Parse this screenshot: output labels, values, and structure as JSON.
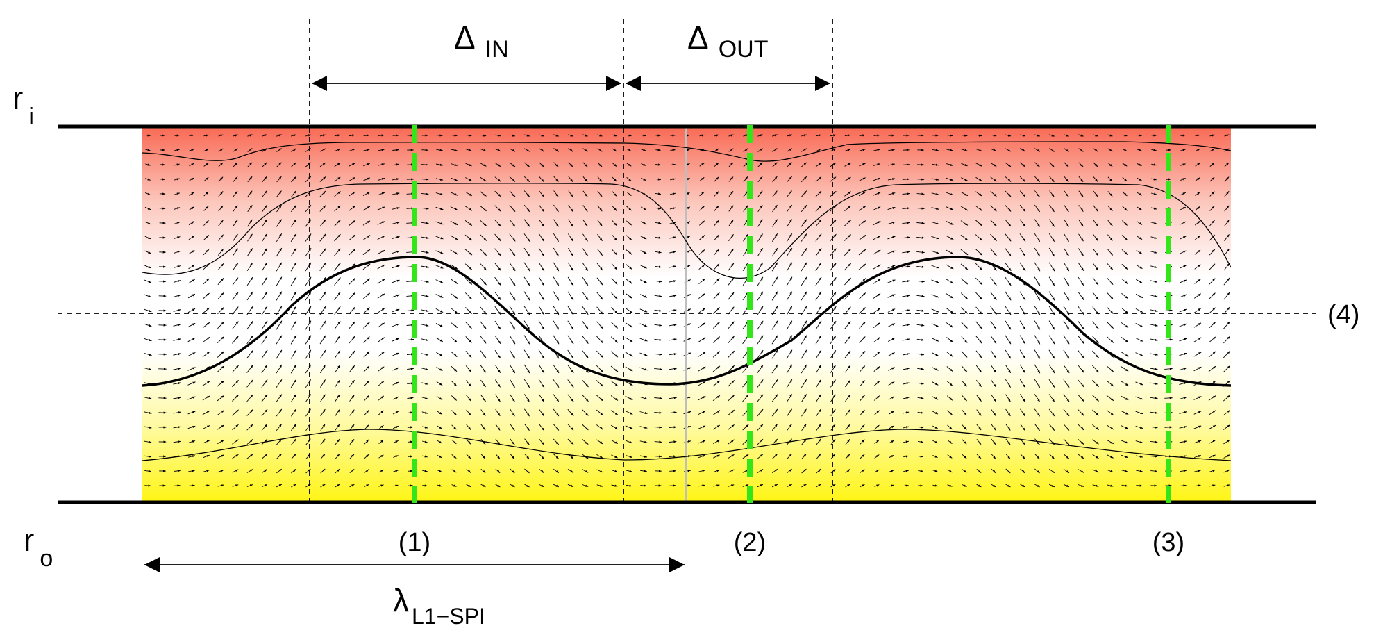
{
  "labels": {
    "inner_radius": {
      "main": "r",
      "sub": "i"
    },
    "outer_radius": {
      "main": "r",
      "sub": "o"
    },
    "delta_in": {
      "main": "Δ",
      "sub": "IN"
    },
    "delta_out": {
      "main": "Δ",
      "sub": "OUT"
    },
    "wavelength": {
      "main": "λ",
      "sub": "L1−SPI"
    },
    "marker_1": "(1)",
    "marker_2": "(2)",
    "marker_3": "(3)",
    "marker_4": "(4)"
  },
  "colors": {
    "inner_wall": "#f96a55",
    "mid": "#ffffff",
    "outer_wall": "#fff514",
    "marker_line": "#33e61a",
    "lines": "#000000"
  }
}
